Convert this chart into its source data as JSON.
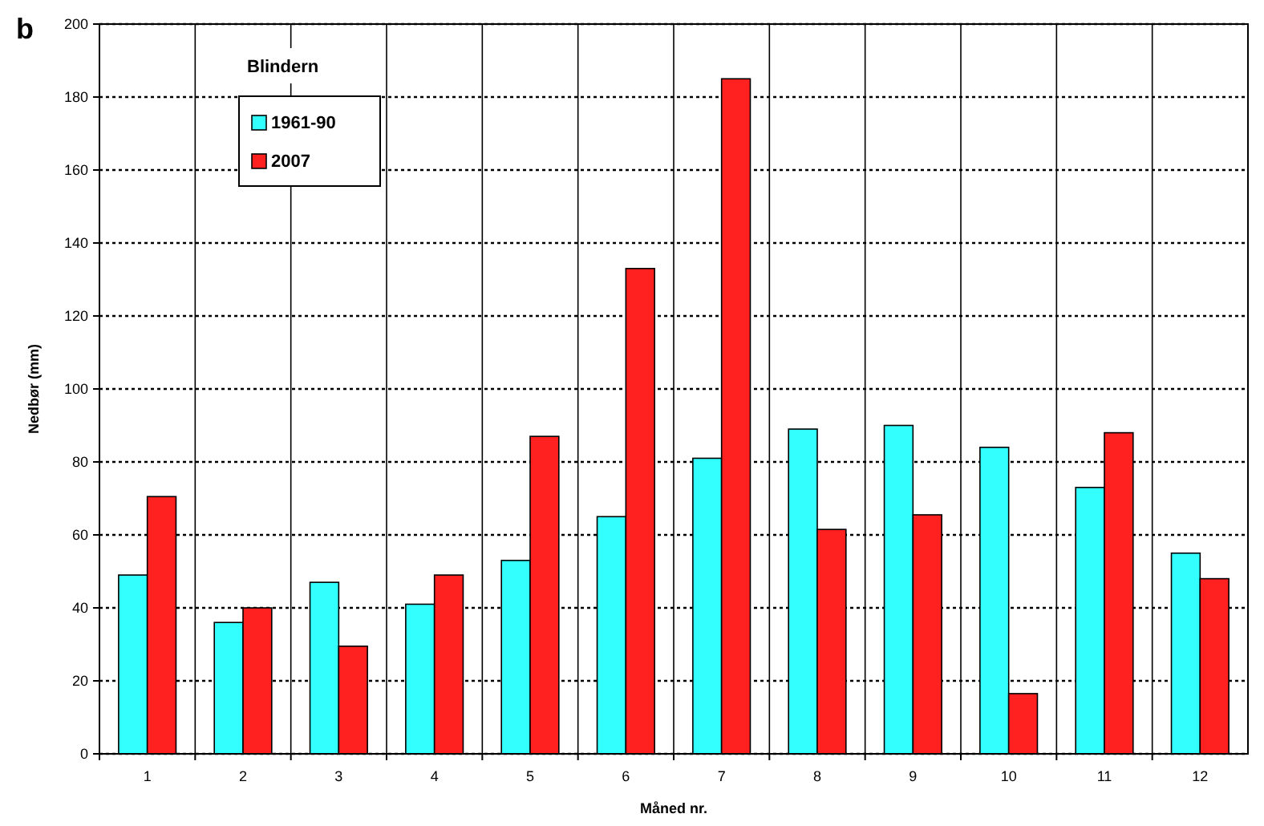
{
  "chart_data": {
    "type": "bar",
    "title": "b",
    "xlabel": "Måned nr.",
    "ylabel": "Nedbør (mm)",
    "legend_title": "Blindern",
    "categories": [
      "1",
      "2",
      "3",
      "4",
      "5",
      "6",
      "7",
      "8",
      "9",
      "10",
      "11",
      "12"
    ],
    "series": [
      {
        "name": "1961-90",
        "color": "#33ffff",
        "values": [
          49,
          36,
          47,
          41,
          53,
          65,
          81,
          89,
          90,
          84,
          73,
          55
        ]
      },
      {
        "name": "2007",
        "color": "#ff2020",
        "values": [
          70.5,
          40,
          29.5,
          49,
          87,
          133,
          185,
          61.5,
          65.5,
          16.5,
          88,
          48
        ]
      }
    ],
    "ylim": [
      0,
      200
    ],
    "yticks": [
      0,
      20,
      40,
      60,
      80,
      100,
      120,
      140,
      160,
      180,
      200
    ],
    "grid": true,
    "legend": "top left"
  }
}
